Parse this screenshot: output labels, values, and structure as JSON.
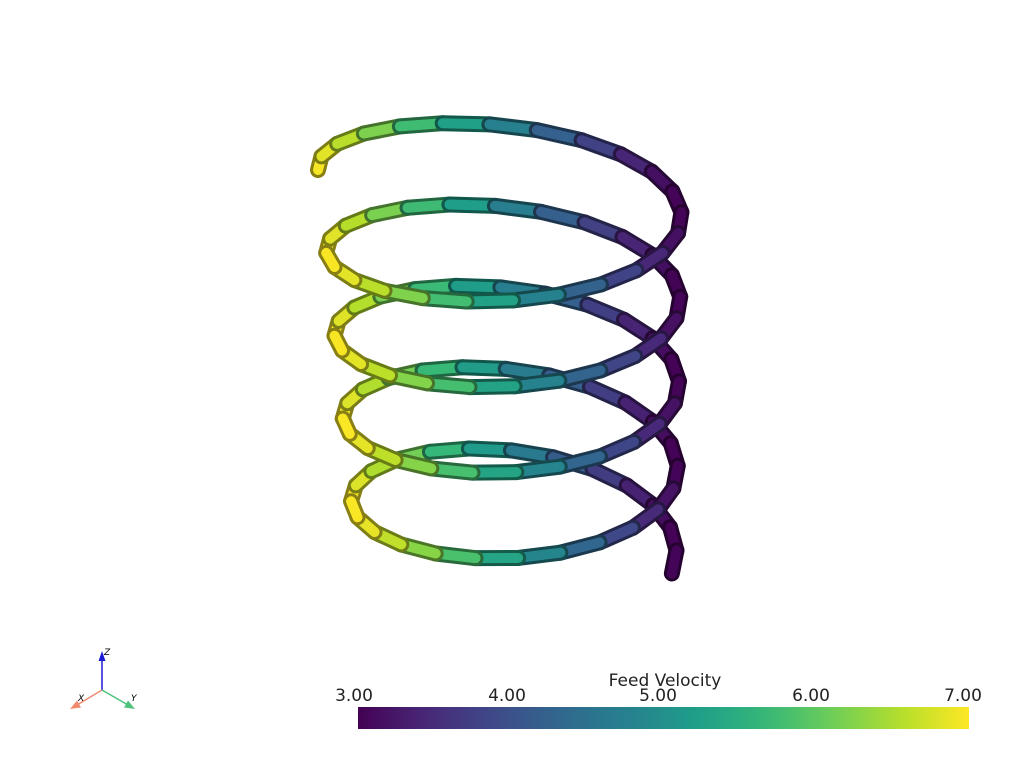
{
  "scalar_bar": {
    "title": "Feed Velocity",
    "range": [
      3.0,
      7.0
    ],
    "ticks": [
      "3.00",
      "4.00",
      "5.00",
      "6.00",
      "7.00"
    ],
    "colormap": "viridis"
  },
  "orientation_axes": {
    "x_label": "X",
    "y_label": "Y",
    "z_label": "Z",
    "x_color": "#f08a6e",
    "y_color": "#4fc27c",
    "z_color": "#1c1cd6"
  },
  "helix": {
    "turns": 4.55,
    "value_min": 3.0,
    "value_max": 7.0
  }
}
